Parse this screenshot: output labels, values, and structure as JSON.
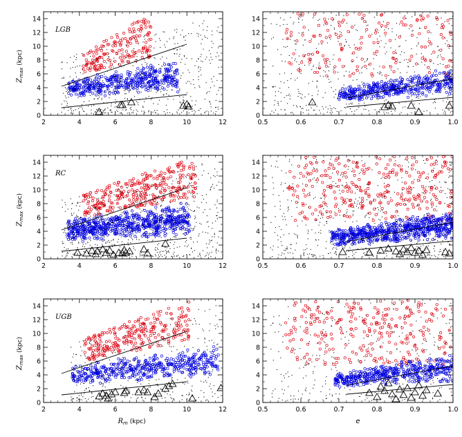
{
  "colors": {
    "thick": "#e0000f",
    "thin": "#0000e0",
    "halo": "#000000",
    "axis": "#000000"
  },
  "chart_data": [
    {
      "type": "scatter",
      "panel_label": "LGB",
      "xlabel": "",
      "ylabel": "Z_max (kpc)",
      "xlim": [
        2,
        12
      ],
      "ylim": [
        0,
        15
      ],
      "xticks": [
        "2",
        "4",
        "6",
        "8",
        "10",
        "12"
      ],
      "yticks": [
        "0",
        "2",
        "4",
        "6",
        "8",
        "10",
        "12",
        "14"
      ],
      "series": [
        {
          "kind": "thick",
          "n": 170,
          "cx": [
            4.2,
            8.0
          ],
          "cyLow": [
            6.0,
            8.4
          ],
          "cyHigh": [
            9.0,
            14.8
          ]
        },
        {
          "kind": "thin",
          "n": 420,
          "cx": [
            3.4,
            9.5
          ],
          "cyLow": [
            2.4,
            3.2
          ],
          "cyHigh": [
            5.5,
            8.0
          ]
        },
        {
          "kind": "halo",
          "n": 550,
          "cx": [
            3.0,
            11.8
          ],
          "cyLow": [
            0.3,
            0.3
          ],
          "cyHigh": [
            8.5,
            14.5
          ]
        }
      ],
      "lines": [
        {
          "x": [
            3,
            10
          ],
          "y": [
            4.2,
            10.3
          ]
        },
        {
          "x": [
            3,
            10
          ],
          "y": [
            1.1,
            3.0
          ]
        }
      ],
      "triangles": [
        [
          5.1,
          0.5
        ],
        [
          6.3,
          1.5
        ],
        [
          6.4,
          1.5
        ],
        [
          6.9,
          1.9
        ],
        [
          9.8,
          1.4
        ],
        [
          10.0,
          1.6
        ],
        [
          10.1,
          1.3
        ]
      ]
    },
    {
      "type": "scatter",
      "panel_label": "",
      "xlabel": "",
      "ylabel": "",
      "xlim": [
        0.5,
        1.0
      ],
      "ylim": [
        0,
        15
      ],
      "xticks": [
        "0.5",
        "0.6",
        "0.7",
        "0.8",
        "0.9",
        "1.0"
      ],
      "yticks": [
        "0",
        "2",
        "4",
        "6",
        "8",
        "10",
        "12",
        "14"
      ],
      "series": [
        {
          "kind": "thick",
          "n": 160,
          "cx": [
            0.56,
            1.0
          ],
          "cyLow": [
            5.5,
            5.5
          ],
          "cyHigh": [
            14.8,
            14.8
          ]
        },
        {
          "kind": "thin",
          "n": 420,
          "cx": [
            0.7,
            1.0
          ],
          "cyLow": [
            2.0,
            2.8
          ],
          "cyHigh": [
            4.0,
            7.0
          ]
        },
        {
          "kind": "halo",
          "n": 520,
          "cx": [
            0.52,
            1.0
          ],
          "cyLow": [
            0.3,
            0.3
          ],
          "cyHigh": [
            14.5,
            14.5
          ]
        }
      ],
      "lines": [
        {
          "x": [
            0.72,
            1.0
          ],
          "y": [
            2.5,
            5.3
          ]
        },
        {
          "x": [
            0.72,
            1.0
          ],
          "y": [
            1.2,
            2.6
          ]
        }
      ],
      "triangles": [
        [
          0.63,
          1.9
        ],
        [
          0.82,
          1.2
        ],
        [
          0.83,
          1.5
        ],
        [
          0.84,
          1.3
        ],
        [
          0.89,
          1.4
        ],
        [
          0.91,
          0.5
        ],
        [
          0.99,
          1.4
        ]
      ]
    },
    {
      "type": "scatter",
      "panel_label": "RC",
      "xlabel": "",
      "ylabel": "Z_max (kpc)",
      "xlim": [
        2,
        12
      ],
      "ylim": [
        0,
        15
      ],
      "xticks": [
        "2",
        "4",
        "6",
        "8",
        "10",
        "12"
      ],
      "yticks": [
        "0",
        "2",
        "4",
        "6",
        "8",
        "10",
        "12",
        "14"
      ],
      "series": [
        {
          "kind": "thick",
          "n": 300,
          "cx": [
            4.2,
            10.5
          ],
          "cyLow": [
            6.0,
            9.0
          ],
          "cyHigh": [
            9.5,
            14.8
          ]
        },
        {
          "kind": "thin",
          "n": 650,
          "cx": [
            3.3,
            10.2
          ],
          "cyLow": [
            2.4,
            3.2
          ],
          "cyHigh": [
            5.8,
            8.3
          ]
        },
        {
          "kind": "halo",
          "n": 650,
          "cx": [
            3.0,
            11.8
          ],
          "cyLow": [
            0.3,
            0.3
          ],
          "cyHigh": [
            8.5,
            14.5
          ]
        }
      ],
      "lines": [
        {
          "x": [
            3,
            10
          ],
          "y": [
            4.2,
            10.3
          ]
        },
        {
          "x": [
            3,
            10
          ],
          "y": [
            1.1,
            3.0
          ]
        }
      ],
      "triangles": [
        [
          3.9,
          0.9
        ],
        [
          4.4,
          0.8
        ],
        [
          4.7,
          1.2
        ],
        [
          4.9,
          0.7
        ],
        [
          5.0,
          1.1
        ],
        [
          5.3,
          1.4
        ],
        [
          5.5,
          0.9
        ],
        [
          5.7,
          1.2
        ],
        [
          5.9,
          0.6
        ],
        [
          6.2,
          0.9
        ],
        [
          6.4,
          0.8
        ],
        [
          6.5,
          1.3
        ],
        [
          6.6,
          0.9
        ],
        [
          6.8,
          1.1
        ],
        [
          7.6,
          1.4
        ],
        [
          7.8,
          0.8
        ],
        [
          8.8,
          2.2
        ]
      ]
    },
    {
      "type": "scatter",
      "panel_label": "",
      "xlabel": "",
      "ylabel": "",
      "xlim": [
        0.5,
        1.0
      ],
      "ylim": [
        0,
        15
      ],
      "xticks": [
        "0.5",
        "0.6",
        "0.7",
        "0.8",
        "0.9",
        "1.0"
      ],
      "yticks": [
        "0",
        "2",
        "4",
        "6",
        "8",
        "10",
        "12",
        "14"
      ],
      "series": [
        {
          "kind": "thick",
          "n": 300,
          "cx": [
            0.56,
            1.0
          ],
          "cyLow": [
            5.5,
            5.5
          ],
          "cyHigh": [
            14.8,
            14.8
          ]
        },
        {
          "kind": "thin",
          "n": 650,
          "cx": [
            0.68,
            1.0
          ],
          "cyLow": [
            1.8,
            2.8
          ],
          "cyHigh": [
            4.2,
            7.2
          ]
        },
        {
          "kind": "halo",
          "n": 600,
          "cx": [
            0.52,
            1.0
          ],
          "cyLow": [
            0.3,
            0.3
          ],
          "cyHigh": [
            14.5,
            14.5
          ]
        }
      ],
      "lines": [
        {
          "x": [
            0.72,
            1.0
          ],
          "y": [
            2.5,
            5.3
          ]
        },
        {
          "x": [
            0.72,
            1.0
          ],
          "y": [
            1.2,
            2.6
          ]
        }
      ],
      "triangles": [
        [
          0.71,
          1.0
        ],
        [
          0.78,
          0.9
        ],
        [
          0.81,
          1.2
        ],
        [
          0.83,
          1.5
        ],
        [
          0.85,
          1.1
        ],
        [
          0.86,
          0.7
        ],
        [
          0.87,
          1.4
        ],
        [
          0.88,
          1.0
        ],
        [
          0.89,
          1.6
        ],
        [
          0.9,
          0.9
        ],
        [
          0.91,
          1.2
        ],
        [
          0.92,
          0.6
        ],
        [
          0.93,
          1.3
        ],
        [
          0.98,
          1.0
        ],
        [
          0.99,
          0.8
        ]
      ]
    },
    {
      "type": "scatter",
      "panel_label": "UGB",
      "xlabel": "R_m (kpc)",
      "ylabel": "Z_max (kpc)",
      "xlim": [
        2,
        12
      ],
      "ylim": [
        0,
        15
      ],
      "xticks": [
        "2",
        "4",
        "6",
        "8",
        "10",
        "12"
      ],
      "yticks": [
        "0",
        "2",
        "4",
        "6",
        "8",
        "10",
        "12",
        "14"
      ],
      "series": [
        {
          "kind": "thick",
          "n": 260,
          "cx": [
            4.3,
            10.2
          ],
          "cyLow": [
            6.0,
            9.0
          ],
          "cyHigh": [
            9.5,
            14.8
          ]
        },
        {
          "kind": "thin",
          "n": 450,
          "cx": [
            3.6,
            11.8
          ],
          "cyLow": [
            2.4,
            3.6
          ],
          "cyHigh": [
            5.5,
            8.5
          ]
        },
        {
          "kind": "halo",
          "n": 380,
          "cx": [
            3.5,
            11.8
          ],
          "cyLow": [
            0.3,
            0.3
          ],
          "cyHigh": [
            8.5,
            14.5
          ]
        }
      ],
      "lines": [
        {
          "x": [
            3,
            10
          ],
          "y": [
            4.2,
            10.3
          ]
        },
        {
          "x": [
            3,
            10
          ],
          "y": [
            1.1,
            3.0
          ]
        }
      ],
      "triangles": [
        [
          5.1,
          0.9
        ],
        [
          5.3,
          1.3
        ],
        [
          5.5,
          1.0
        ],
        [
          5.6,
          0.6
        ],
        [
          5.8,
          1.2
        ],
        [
          6.0,
          1.5
        ],
        [
          6.5,
          1.4
        ],
        [
          6.6,
          1.7
        ],
        [
          7.3,
          1.5
        ],
        [
          7.6,
          1.8
        ],
        [
          7.8,
          1.5
        ],
        [
          8.2,
          0.8
        ],
        [
          8.4,
          1.3
        ],
        [
          8.8,
          2.0
        ],
        [
          9.0,
          2.4
        ],
        [
          9.2,
          2.7
        ],
        [
          10.3,
          0.6
        ],
        [
          11.9,
          2.1
        ]
      ]
    },
    {
      "type": "scatter",
      "panel_label": "",
      "xlabel": "e",
      "ylabel": "",
      "xlim": [
        0.5,
        1.0
      ],
      "ylim": [
        0,
        15
      ],
      "xticks": [
        "0.5",
        "0.6",
        "0.7",
        "0.8",
        "0.9",
        "1.0"
      ],
      "yticks": [
        "0",
        "2",
        "4",
        "6",
        "8",
        "10",
        "12",
        "14"
      ],
      "series": [
        {
          "kind": "thick",
          "n": 260,
          "cx": [
            0.56,
            1.0
          ],
          "cyLow": [
            5.5,
            5.5
          ],
          "cyHigh": [
            14.8,
            14.8
          ]
        },
        {
          "kind": "thin",
          "n": 450,
          "cx": [
            0.69,
            1.0
          ],
          "cyLow": [
            2.0,
            2.8
          ],
          "cyHigh": [
            4.3,
            7.5
          ]
        },
        {
          "kind": "halo",
          "n": 380,
          "cx": [
            0.52,
            1.0
          ],
          "cyLow": [
            0.3,
            0.3
          ],
          "cyHigh": [
            14.5,
            14.5
          ]
        }
      ],
      "lines": [
        {
          "x": [
            0.72,
            1.0
          ],
          "y": [
            2.5,
            5.3
          ]
        },
        {
          "x": [
            0.72,
            1.0
          ],
          "y": [
            1.2,
            2.6
          ]
        }
      ],
      "triangles": [
        [
          0.78,
          1.4
        ],
        [
          0.8,
          0.8
        ],
        [
          0.81,
          2.3
        ],
        [
          0.82,
          1.7
        ],
        [
          0.83,
          2.8
        ],
        [
          0.84,
          1.2
        ],
        [
          0.85,
          0.5
        ],
        [
          0.86,
          1.9
        ],
        [
          0.87,
          1.1
        ],
        [
          0.88,
          2.1
        ],
        [
          0.89,
          0.7
        ],
        [
          0.9,
          1.5
        ],
        [
          0.91,
          2.5
        ],
        [
          0.92,
          1.0
        ],
        [
          0.93,
          1.8
        ],
        [
          0.96,
          1.3
        ]
      ]
    }
  ]
}
